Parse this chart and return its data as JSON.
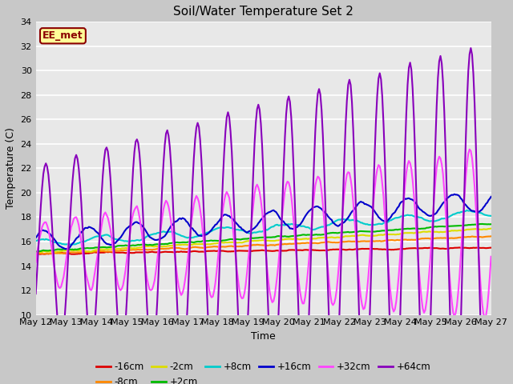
{
  "title": "Soil/Water Temperature Set 2",
  "xlabel": "Time",
  "ylabel": "Temperature (C)",
  "ylim": [
    10,
    34
  ],
  "yticks": [
    10,
    12,
    14,
    16,
    18,
    20,
    22,
    24,
    26,
    28,
    30,
    32,
    34
  ],
  "fig_bg_color": "#c8c8c8",
  "plot_bg_color": "#e8e8e8",
  "annotation_text": "EE_met",
  "annotation_bg": "#ffff99",
  "annotation_border": "#8b0000",
  "annotation_text_color": "#8b0000",
  "series_order": [
    "-16cm",
    "-8cm",
    "-2cm",
    "+2cm",
    "+8cm",
    "+16cm",
    "+32cm",
    "+64cm"
  ],
  "series": {
    "-16cm": {
      "color": "#dd0000",
      "lw": 1.5
    },
    "-8cm": {
      "color": "#ff8800",
      "lw": 1.5
    },
    "-2cm": {
      "color": "#dddd00",
      "lw": 1.5
    },
    "+2cm": {
      "color": "#00bb00",
      "lw": 1.5
    },
    "+8cm": {
      "color": "#00cccc",
      "lw": 1.5
    },
    "+16cm": {
      "color": "#0000cc",
      "lw": 1.5
    },
    "+32cm": {
      "color": "#ff44ff",
      "lw": 1.5
    },
    "+64cm": {
      "color": "#8800bb",
      "lw": 1.5
    }
  },
  "x_labels": [
    "May 12",
    "May 13",
    "May 14",
    "May 15",
    "May 16",
    "May 17",
    "May 18",
    "May 19",
    "May 20",
    "May 21",
    "May 22",
    "May 23",
    "May 24",
    "May 25",
    "May 26",
    "May 27"
  ],
  "legend_order": [
    "-16cm",
    "-8cm",
    "-2cm",
    "+2cm",
    "+8cm",
    "+16cm",
    "+32cm",
    "+64cm"
  ]
}
